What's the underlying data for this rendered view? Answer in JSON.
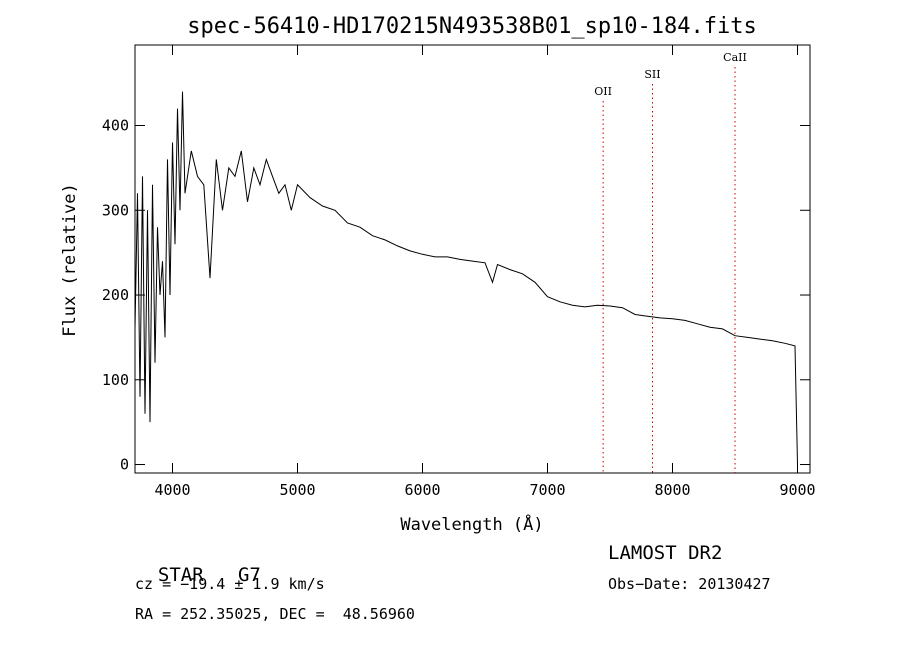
{
  "chart_data": {
    "type": "line",
    "title": "spec-56410-HD170215N493538B01_sp10-184.fits",
    "xlabel": "Wavelength (Å)",
    "ylabel": "Flux (relative)",
    "xlim": [
      3700,
      9100
    ],
    "ylim": [
      -10,
      495
    ],
    "x_ticks": [
      4000,
      5000,
      6000,
      7000,
      8000,
      9000
    ],
    "y_ticks": [
      0,
      100,
      200,
      300,
      400
    ],
    "grid": false,
    "series": [
      {
        "x": [
          3700,
          3720,
          3740,
          3760,
          3780,
          3800,
          3820,
          3840,
          3860,
          3880,
          3900,
          3920,
          3940,
          3960,
          3980,
          4000,
          4020,
          4040,
          4060,
          4080,
          4100,
          4150,
          4200,
          4250,
          4300,
          4350,
          4400,
          4450,
          4500,
          4550,
          4600,
          4650,
          4700,
          4750,
          4800,
          4850,
          4900,
          4950,
          5000,
          5100,
          5200,
          5300,
          5400,
          5500,
          5600,
          5700,
          5800,
          5900,
          6000,
          6100,
          6200,
          6300,
          6400,
          6500,
          6560,
          6600,
          6700,
          6800,
          6900,
          7000,
          7100,
          7200,
          7300,
          7400,
          7500,
          7600,
          7700,
          7800,
          7900,
          8000,
          8100,
          8200,
          8300,
          8400,
          8500,
          8600,
          8700,
          8800,
          8900,
          8980,
          9000
        ],
        "y": [
          160,
          320,
          80,
          340,
          60,
          300,
          50,
          330,
          120,
          280,
          200,
          240,
          150,
          360,
          200,
          380,
          260,
          420,
          300,
          440,
          320,
          370,
          340,
          330,
          220,
          360,
          300,
          350,
          340,
          370,
          310,
          350,
          330,
          360,
          340,
          320,
          330,
          300,
          330,
          315,
          305,
          300,
          285,
          280,
          270,
          265,
          258,
          252,
          248,
          245,
          245,
          242,
          240,
          238,
          215,
          236,
          230,
          225,
          215,
          198,
          192,
          188,
          186,
          188,
          187,
          185,
          177,
          175,
          173,
          172,
          170,
          166,
          162,
          160,
          152,
          150,
          148,
          146,
          143,
          140,
          0
        ]
      }
    ],
    "line_markers": [
      {
        "label": "OII",
        "x": 7445
      },
      {
        "label": "SII",
        "x": 7840
      },
      {
        "label": "CaII",
        "x": 8500
      }
    ]
  },
  "info": {
    "object_class": "STAR",
    "subclass": "G7",
    "survey": "LAMOST DR2",
    "cz": "cz = −19.4 ± 1.9 km/s",
    "obs_date": "Obs−Date: 20130427",
    "coords": "RA = 252.35025, DEC =  48.56960"
  },
  "colors": {
    "spectrum": "#000000",
    "marker_line": "#cc0000",
    "axes": "#000000"
  }
}
